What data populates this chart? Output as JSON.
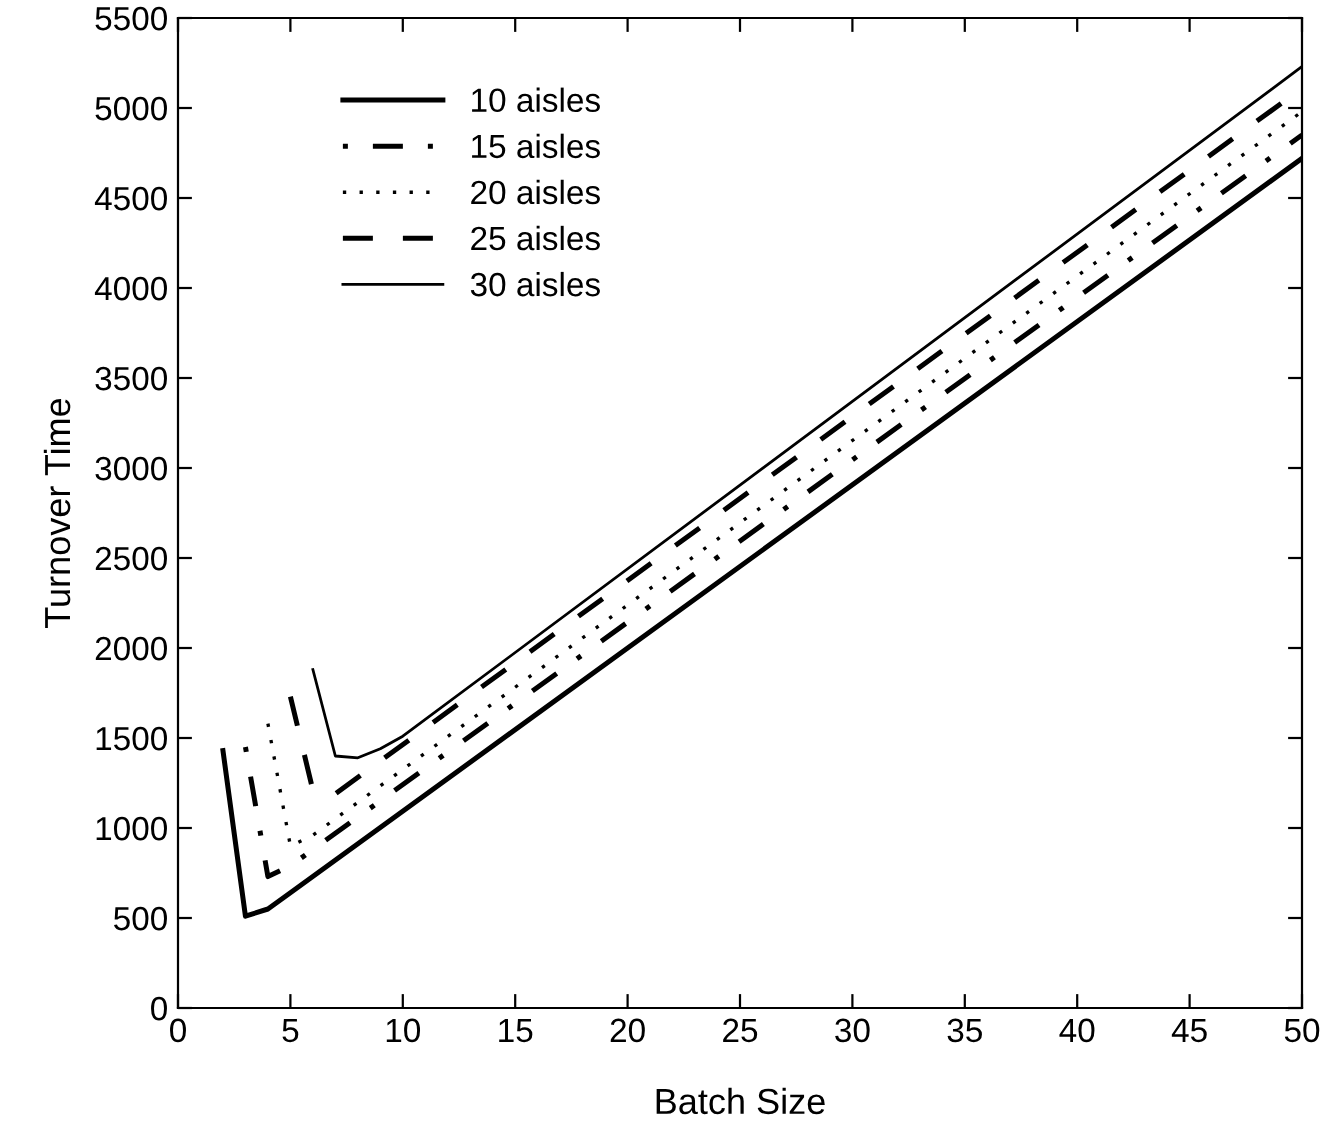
{
  "chart_data": {
    "type": "line",
    "xlabel": "Batch Size",
    "ylabel": "Turnover Time",
    "xlim": [
      0,
      50
    ],
    "xticks": [
      0,
      5,
      10,
      15,
      20,
      25,
      30,
      35,
      40,
      45,
      50
    ],
    "ylim": [
      0,
      5500
    ],
    "yticks": [
      0,
      500,
      1000,
      1500,
      2000,
      2500,
      3000,
      3500,
      4000,
      4500,
      5000,
      5500
    ],
    "grid": false,
    "legend": "top left",
    "marker": "none",
    "series": [
      {
        "name": "10 aisles",
        "color": "#000000",
        "line_style": "solid",
        "x": [
          2,
          3,
          4,
          5,
          50
        ],
        "values": [
          1430,
          510,
          550,
          640,
          4720
        ]
      },
      {
        "name": "15 aisles",
        "color": "#000000",
        "line_style": "dashdot",
        "x": [
          3,
          4,
          5,
          50
        ],
        "values": [
          1450,
          730,
          790,
          4850
        ]
      },
      {
        "name": "20 aisles",
        "color": "#000000",
        "line_style": "dotted",
        "x": [
          4,
          5,
          6,
          50
        ],
        "values": [
          1580,
          900,
          960,
          4980
        ]
      },
      {
        "name": "25 aisles",
        "color": "#000000",
        "line_style": "dashed",
        "x": [
          5,
          6,
          7,
          50
        ],
        "values": [
          1730,
          1210,
          1190,
          5110
        ]
      },
      {
        "name": "30 aisles",
        "color": "#000000",
        "line_style": "solid",
        "x": [
          6,
          7,
          8,
          9,
          10,
          50
        ],
        "values": [
          1880,
          1400,
          1390,
          1440,
          1510,
          5230
        ]
      }
    ]
  }
}
